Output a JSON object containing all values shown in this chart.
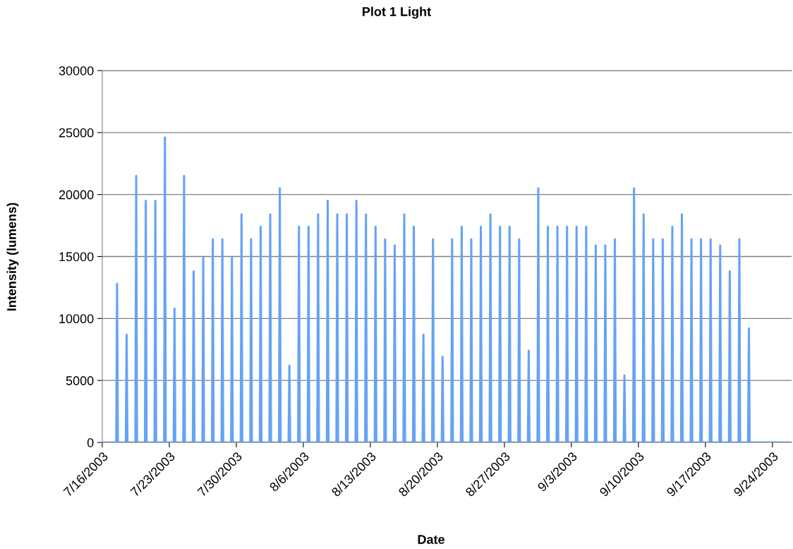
{
  "chart_data": {
    "type": "line",
    "title": "Plot 1 Light",
    "xlabel": "Date",
    "ylabel": "Intensity (lumens)",
    "xlim": [
      "2003-07-16",
      "2003-09-26"
    ],
    "ylim": [
      0,
      30000
    ],
    "xticks": [
      {
        "value": "2003-07-16",
        "label": "7/16/2003"
      },
      {
        "value": "2003-07-23",
        "label": "7/23/2003"
      },
      {
        "value": "2003-07-30",
        "label": "7/30/2003"
      },
      {
        "value": "2003-08-06",
        "label": "8/6/2003"
      },
      {
        "value": "2003-08-13",
        "label": "8/13/2003"
      },
      {
        "value": "2003-08-20",
        "label": "8/20/2003"
      },
      {
        "value": "2003-08-27",
        "label": "8/27/2003"
      },
      {
        "value": "2003-09-03",
        "label": "9/3/2003"
      },
      {
        "value": "2003-09-10",
        "label": "9/10/2003"
      },
      {
        "value": "2003-09-17",
        "label": "9/17/2003"
      },
      {
        "value": "2003-09-24",
        "label": "9/24/2003"
      }
    ],
    "yticks": [
      0,
      5000,
      10000,
      15000,
      20000,
      25000,
      30000
    ],
    "grid": "y",
    "marker": "none",
    "line_style": "solid",
    "series": [
      {
        "color": "#66a3f5",
        "x": [
          "2003-07-16T00:00",
          "2003-07-17T11:00",
          "2003-07-17T13:00",
          "2003-07-17T15:00",
          "2003-07-18T11:00",
          "2003-07-18T13:00",
          "2003-07-18T15:00",
          "2003-07-19T11:00",
          "2003-07-19T13:00",
          "2003-07-19T15:00",
          "2003-07-20T11:00",
          "2003-07-20T13:00",
          "2003-07-20T15:00",
          "2003-07-21T11:00",
          "2003-07-21T13:00",
          "2003-07-21T15:00",
          "2003-07-22T11:00",
          "2003-07-22T13:00",
          "2003-07-22T15:00",
          "2003-07-23T11:00",
          "2003-07-23T13:00",
          "2003-07-23T15:00",
          "2003-07-24T11:00",
          "2003-07-24T13:00",
          "2003-07-24T15:00",
          "2003-07-25T11:00",
          "2003-07-25T13:00",
          "2003-07-25T15:00",
          "2003-07-26T11:00",
          "2003-07-26T13:00",
          "2003-07-26T15:00",
          "2003-07-27T11:00",
          "2003-07-27T13:00",
          "2003-07-27T15:00",
          "2003-07-28T11:00",
          "2003-07-28T13:00",
          "2003-07-28T15:00",
          "2003-07-29T11:00",
          "2003-07-29T13:00",
          "2003-07-29T15:00",
          "2003-07-30T11:00",
          "2003-07-30T13:00",
          "2003-07-30T15:00",
          "2003-07-31T11:00",
          "2003-07-31T13:00",
          "2003-07-31T15:00",
          "2003-08-01T11:00",
          "2003-08-01T13:00",
          "2003-08-01T15:00",
          "2003-08-02T11:00",
          "2003-08-02T13:00",
          "2003-08-02T15:00",
          "2003-08-03T11:00",
          "2003-08-03T13:00",
          "2003-08-03T15:00",
          "2003-08-04T11:00",
          "2003-08-04T13:00",
          "2003-08-04T15:00",
          "2003-08-05T11:00",
          "2003-08-05T13:00",
          "2003-08-05T15:00",
          "2003-08-06T11:00",
          "2003-08-06T13:00",
          "2003-08-06T15:00",
          "2003-08-07T11:00",
          "2003-08-07T13:00",
          "2003-08-07T15:00",
          "2003-08-08T11:00",
          "2003-08-08T13:00",
          "2003-08-08T15:00",
          "2003-08-09T11:00",
          "2003-08-09T13:00",
          "2003-08-09T15:00",
          "2003-08-10T11:00",
          "2003-08-10T13:00",
          "2003-08-10T15:00",
          "2003-08-11T11:00",
          "2003-08-11T13:00",
          "2003-08-11T15:00",
          "2003-08-12T11:00",
          "2003-08-12T13:00",
          "2003-08-12T15:00",
          "2003-08-13T11:00",
          "2003-08-13T13:00",
          "2003-08-13T15:00",
          "2003-08-14T11:00",
          "2003-08-14T13:00",
          "2003-08-14T15:00",
          "2003-08-15T11:00",
          "2003-08-15T13:00",
          "2003-08-15T15:00",
          "2003-08-16T11:00",
          "2003-08-16T13:00",
          "2003-08-16T15:00",
          "2003-08-17T11:00",
          "2003-08-17T13:00",
          "2003-08-17T15:00",
          "2003-08-18T11:00",
          "2003-08-18T13:00",
          "2003-08-18T15:00",
          "2003-08-19T11:00",
          "2003-08-19T13:00",
          "2003-08-19T15:00",
          "2003-08-20T11:00",
          "2003-08-20T13:00",
          "2003-08-20T15:00",
          "2003-08-21T11:00",
          "2003-08-21T13:00",
          "2003-08-21T15:00",
          "2003-08-22T11:00",
          "2003-08-22T13:00",
          "2003-08-22T15:00",
          "2003-08-23T11:00",
          "2003-08-23T13:00",
          "2003-08-23T15:00",
          "2003-08-24T11:00",
          "2003-08-24T13:00",
          "2003-08-24T15:00",
          "2003-08-25T11:00",
          "2003-08-25T13:00",
          "2003-08-25T15:00",
          "2003-08-26T11:00",
          "2003-08-26T13:00",
          "2003-08-26T15:00",
          "2003-08-27T11:00",
          "2003-08-27T13:00",
          "2003-08-27T15:00",
          "2003-08-28T11:00",
          "2003-08-28T13:00",
          "2003-08-28T15:00",
          "2003-08-29T11:00",
          "2003-08-29T13:00",
          "2003-08-29T15:00",
          "2003-08-30T11:00",
          "2003-08-30T13:00",
          "2003-08-30T15:00",
          "2003-08-31T11:00",
          "2003-08-31T13:00",
          "2003-08-31T15:00",
          "2003-09-01T11:00",
          "2003-09-01T13:00",
          "2003-09-01T15:00",
          "2003-09-02T11:00",
          "2003-09-02T13:00",
          "2003-09-02T15:00",
          "2003-09-03T11:00",
          "2003-09-03T13:00",
          "2003-09-03T15:00",
          "2003-09-04T11:00",
          "2003-09-04T13:00",
          "2003-09-04T15:00",
          "2003-09-05T11:00",
          "2003-09-05T13:00",
          "2003-09-05T15:00",
          "2003-09-06T11:00",
          "2003-09-06T13:00",
          "2003-09-06T15:00",
          "2003-09-07T11:00",
          "2003-09-07T13:00",
          "2003-09-07T15:00",
          "2003-09-08T11:00",
          "2003-09-08T13:00",
          "2003-09-08T15:00",
          "2003-09-09T11:00",
          "2003-09-09T13:00",
          "2003-09-09T15:00",
          "2003-09-10T11:00",
          "2003-09-10T13:00",
          "2003-09-10T15:00",
          "2003-09-11T11:00",
          "2003-09-11T13:00",
          "2003-09-11T15:00",
          "2003-09-12T11:00",
          "2003-09-12T13:00",
          "2003-09-12T15:00",
          "2003-09-13T11:00",
          "2003-09-13T13:00",
          "2003-09-13T15:00",
          "2003-09-14T11:00",
          "2003-09-14T13:00",
          "2003-09-14T15:00",
          "2003-09-15T11:00",
          "2003-09-15T13:00",
          "2003-09-15T15:00",
          "2003-09-16T11:00",
          "2003-09-16T13:00",
          "2003-09-16T15:00",
          "2003-09-17T11:00",
          "2003-09-17T13:00",
          "2003-09-17T15:00",
          "2003-09-18T11:00",
          "2003-09-18T13:00",
          "2003-09-18T15:00",
          "2003-09-19T11:00",
          "2003-09-19T13:00",
          "2003-09-19T15:00",
          "2003-09-20T11:00",
          "2003-09-20T13:00",
          "2003-09-20T15:00",
          "2003-09-21T11:00",
          "2003-09-21T13:00",
          "2003-09-21T15:00",
          "2003-09-26T00:00"
        ],
        "values": [
          0,
          0,
          12800,
          0,
          0,
          8700,
          0,
          0,
          21500,
          0,
          0,
          19500,
          0,
          0,
          19500,
          0,
          0,
          24600,
          0,
          0,
          10800,
          0,
          0,
          21500,
          0,
          0,
          13800,
          0,
          0,
          14900,
          0,
          0,
          16400,
          0,
          0,
          16400,
          0,
          0,
          14900,
          0,
          0,
          18400,
          0,
          0,
          16400,
          0,
          0,
          17400,
          0,
          0,
          18400,
          0,
          0,
          20500,
          0,
          0,
          6200,
          0,
          0,
          17400,
          0,
          0,
          17400,
          0,
          0,
          18400,
          0,
          0,
          19500,
          0,
          0,
          18400,
          0,
          0,
          18400,
          0,
          0,
          19500,
          0,
          0,
          18400,
          0,
          0,
          17400,
          0,
          0,
          16400,
          0,
          0,
          15900,
          0,
          0,
          18400,
          0,
          0,
          17400,
          0,
          0,
          8700,
          0,
          0,
          16400,
          0,
          0,
          6900,
          0,
          0,
          16400,
          0,
          0,
          17400,
          0,
          0,
          16400,
          0,
          0,
          17400,
          0,
          0,
          18400,
          0,
          0,
          17400,
          0,
          0,
          17400,
          0,
          0,
          16400,
          0,
          0,
          7400,
          0,
          0,
          20500,
          0,
          0,
          17400,
          0,
          0,
          17400,
          0,
          0,
          17400,
          0,
          0,
          17400,
          0,
          0,
          17400,
          0,
          0,
          15900,
          0,
          0,
          15900,
          0,
          0,
          16400,
          0,
          0,
          5400,
          0,
          0,
          20500,
          0,
          0,
          18400,
          0,
          0,
          16400,
          0,
          0,
          16400,
          0,
          0,
          17400,
          0,
          0,
          18400,
          0,
          0,
          16400,
          0,
          0,
          16400,
          0,
          0,
          16400,
          0,
          0,
          15900,
          0,
          0,
          13800,
          0,
          0,
          16400,
          0,
          0,
          9200,
          0,
          0
        ]
      }
    ]
  }
}
